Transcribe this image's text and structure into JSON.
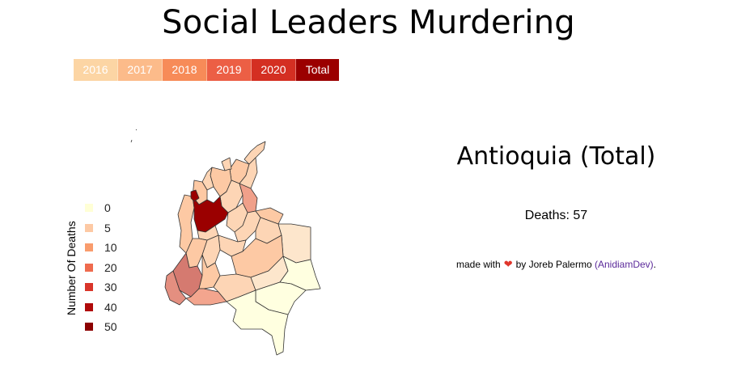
{
  "title": "Social Leaders Murdering",
  "tabs": [
    {
      "label": "2016",
      "color": "#fcd5a4",
      "text_color": "#ffffff"
    },
    {
      "label": "2017",
      "color": "#fcbb8a",
      "text_color": "#ffffff"
    },
    {
      "label": "2018",
      "color": "#f78b58",
      "text_color": "#ffffff"
    },
    {
      "label": "2019",
      "color": "#ec5f45",
      "text_color": "#ffffff"
    },
    {
      "label": "2020",
      "color": "#d42f22",
      "text_color": "#ffffff"
    },
    {
      "label": "Total",
      "color": "#9b0000",
      "text_color": "#ffffff",
      "selected": true
    }
  ],
  "legend": {
    "title": "Number Of Deaths",
    "items": [
      {
        "label": "0",
        "color": "#ffffd6"
      },
      {
        "label": "5",
        "color": "#fdc9a4"
      },
      {
        "label": "10",
        "color": "#f99c6d"
      },
      {
        "label": "20",
        "color": "#ef6b4e"
      },
      {
        "label": "30",
        "color": "#d9352a"
      },
      {
        "label": "40",
        "color": "#b00a0a"
      },
      {
        "label": "50",
        "color": "#8c0000"
      }
    ]
  },
  "selection": {
    "title": "Antioquia (Total)",
    "deaths_text": "Deaths: 57"
  },
  "credit": {
    "prefix": "made with",
    "heart": "❤",
    "middle": "by Joreb Palermo",
    "link_text": "(AnidiamDev)",
    "suffix": "."
  },
  "map": {
    "highlight_region": "Antioquia",
    "highlight_color": "#9b0000",
    "stroke": "#333333"
  }
}
